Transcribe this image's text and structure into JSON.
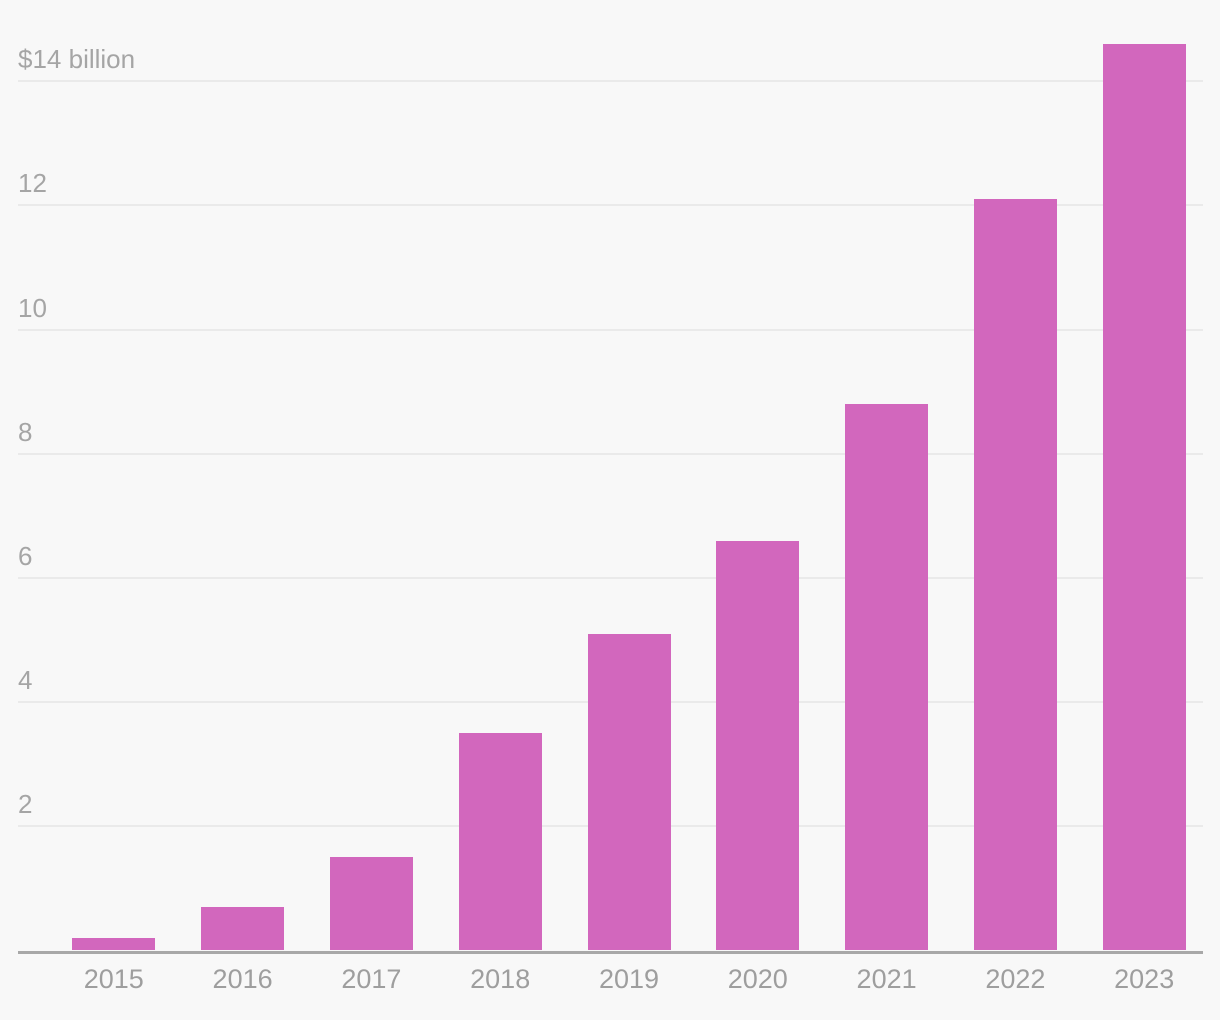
{
  "chart_data": {
    "type": "bar",
    "title": "",
    "categories": [
      "2015",
      "2016",
      "2017",
      "2018",
      "2019",
      "2020",
      "2021",
      "2022",
      "2023"
    ],
    "values": [
      0.2,
      0.7,
      1.5,
      3.5,
      5.1,
      6.6,
      8.8,
      12.1,
      14.6
    ],
    "unit_label": "$14 billion",
    "xlabel": "",
    "ylabel": "billions of dollars",
    "ylim": [
      0,
      14.65
    ],
    "y_ticks": [
      {
        "value": 14,
        "label": "$14 billion"
      },
      {
        "value": 12,
        "label": "12"
      },
      {
        "value": 10,
        "label": "10"
      },
      {
        "value": 8,
        "label": "8"
      },
      {
        "value": 6,
        "label": "6"
      },
      {
        "value": 4,
        "label": "4"
      },
      {
        "value": 2,
        "label": "2"
      }
    ],
    "grid": "horizontal-on",
    "legend": "none",
    "colors": {
      "bar": "#d267bd",
      "background": "#f8f8f8",
      "gridline": "#eaeaea",
      "axis_line": "#a8a8a8",
      "y_label_text": "#a5a5a5",
      "x_label_text": "#9e9e9e"
    }
  }
}
